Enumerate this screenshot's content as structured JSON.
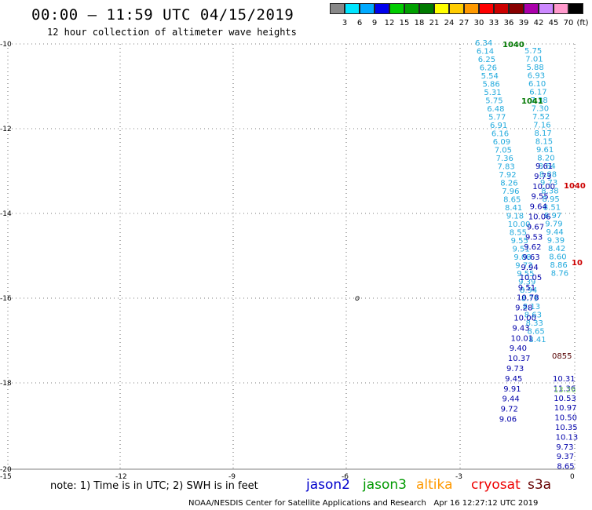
{
  "header": {
    "title": "00:00 – 11:59 UTC 04/15/2019",
    "subtitle": "12 hour collection of altimeter wave heights"
  },
  "color_scale": {
    "unit": "(ft)",
    "labels": [
      "3",
      "6",
      "9",
      "12",
      "15",
      "18",
      "21",
      "24",
      "27",
      "30",
      "33",
      "36",
      "39",
      "42",
      "45",
      "70"
    ],
    "colors": [
      "#888888",
      "#00e5ff",
      "#00aaff",
      "#0000ee",
      "#00cc00",
      "#00a000",
      "#007a00",
      "#ffff00",
      "#ffcc00",
      "#ff9900",
      "#ff0000",
      "#cc0000",
      "#880000",
      "#aa00aa",
      "#cc88ff",
      "#ff99cc",
      "#000000"
    ]
  },
  "axes": {
    "lat_ticks": [
      "-10",
      "-12",
      "-14",
      "-16",
      "-18",
      "-20"
    ],
    "lon_ticks": [
      "-15",
      "-12",
      "-9",
      "-6",
      "-3",
      "0"
    ]
  },
  "map_marker": "o",
  "note": "note: 1) Time is in UTC; 2) SWH is in feet",
  "satellites": [
    {
      "name": "jason2",
      "color": "#0000cc"
    },
    {
      "name": "jason3",
      "color": "#009900"
    },
    {
      "name": "altika",
      "color": "#ff9900"
    },
    {
      "name": "cryosat",
      "color": "#ee0000"
    },
    {
      "name": "s3a",
      "color": "#660000"
    }
  ],
  "footer": "NOAA/NESDIS Center for Satellite Applications and Research   Apr 16 12:27:12 UTC 2019",
  "tracks": [
    {
      "color": "#22aadd",
      "values": [
        "6.34",
        "6.14",
        "6.25",
        "6.26",
        "5.54",
        "5.86",
        "5.31",
        "5.75",
        "6.48",
        "5.77",
        "6.91",
        "6.16",
        "6.09",
        "7.05",
        "7.36",
        "7.83",
        "7.92",
        "8.26",
        "7.96",
        "8.65",
        "8.41",
        "9.18",
        "10.00",
        "8.55",
        "9.55",
        "9.51",
        "9.08",
        "9.72",
        "9.55",
        "9.39",
        "8.94",
        "8.79",
        "8.13",
        "8.63",
        "8.33",
        "8.65",
        "8.41"
      ]
    },
    {
      "color": "#22aadd",
      "values": [
        "5.75",
        "7.01",
        "5.88",
        "6.93",
        "6.10",
        "6.17",
        "7.38",
        "7.30",
        "7.52",
        "7.16",
        "8.17",
        "8.15",
        "9.61",
        "8.20",
        "8.64",
        "8.88",
        "9.73",
        "8.38",
        "8.95",
        "8.51",
        "8.97",
        "9.79",
        "9.44",
        "9.39",
        "8.42",
        "8.60",
        "8.86",
        "8.76"
      ]
    },
    {
      "color": "#0000aa",
      "values": [
        "9.61",
        "9.73",
        "10.00",
        "9.55",
        "9.64",
        "10.06",
        "9.67",
        "9.53",
        "9.62",
        "9.63",
        "9.94",
        "10.05",
        "9.51",
        "10.78",
        "9.28",
        "10.00",
        "9.43",
        "10.01",
        "9.40",
        "10.37",
        "9.73",
        "9.45",
        "9.91",
        "9.44",
        "9.72",
        "9.06"
      ]
    },
    {
      "color": "#0000aa",
      "values": [
        "10.31",
        "11.36",
        "10.53",
        "10.97",
        "10.50",
        "10.35",
        "10.13",
        "9.73",
        "9.37",
        "8.65"
      ]
    },
    {
      "color": "#007700",
      "values": [
        "1040",
        "1041"
      ]
    },
    {
      "color": "#cc0000",
      "values": [
        "1040",
        "10"
      ]
    },
    {
      "color": "#550000",
      "values": [
        "0855"
      ]
    },
    {
      "color": "#88dd66",
      "values": [
        "13.26"
      ]
    }
  ]
}
